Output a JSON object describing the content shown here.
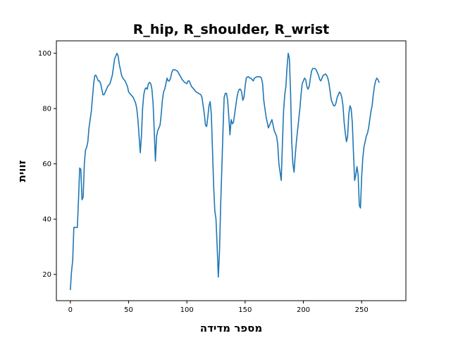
{
  "chart_data": {
    "type": "line",
    "title": "R_hip, R_shoulder, R_wrist",
    "xlabel": "מספר מדידה",
    "ylabel": "זווית",
    "xlim": [
      -12,
      288
    ],
    "ylim": [
      10.5,
      104.5
    ],
    "xticks": [
      0,
      50,
      100,
      150,
      200,
      250
    ],
    "yticks": [
      20,
      40,
      60,
      80,
      100
    ],
    "grid": false,
    "line_color": "#1f77b4",
    "series": [
      {
        "points": [
          [
            0,
            14.5
          ],
          [
            1,
            21
          ],
          [
            2,
            25
          ],
          [
            3,
            37
          ],
          [
            4,
            37
          ],
          [
            5,
            37
          ],
          [
            6,
            37
          ],
          [
            7,
            47
          ],
          [
            8,
            58.5
          ],
          [
            9,
            58
          ],
          [
            10,
            47
          ],
          [
            11,
            48
          ],
          [
            12,
            60
          ],
          [
            13,
            65
          ],
          [
            14,
            66
          ],
          [
            15,
            68
          ],
          [
            16,
            73
          ],
          [
            17,
            76
          ],
          [
            18,
            79
          ],
          [
            19,
            84
          ],
          [
            20,
            89
          ],
          [
            21,
            92
          ],
          [
            22,
            92
          ],
          [
            23,
            91
          ],
          [
            24,
            90
          ],
          [
            25,
            90
          ],
          [
            26,
            89
          ],
          [
            27,
            87
          ],
          [
            28,
            85
          ],
          [
            29,
            85
          ],
          [
            30,
            86
          ],
          [
            32,
            88
          ],
          [
            34,
            89
          ],
          [
            36,
            92
          ],
          [
            37,
            95
          ],
          [
            38,
            98
          ],
          [
            40,
            100
          ],
          [
            41,
            99
          ],
          [
            42,
            96
          ],
          [
            43,
            94
          ],
          [
            44,
            92
          ],
          [
            45,
            91
          ],
          [
            46,
            90.5
          ],
          [
            47,
            90
          ],
          [
            48,
            89
          ],
          [
            49,
            88
          ],
          [
            50,
            86
          ],
          [
            52,
            85
          ],
          [
            54,
            84
          ],
          [
            55,
            83
          ],
          [
            56,
            82
          ],
          [
            57,
            80
          ],
          [
            58,
            76
          ],
          [
            59,
            70
          ],
          [
            60,
            64
          ],
          [
            61,
            70
          ],
          [
            62,
            80
          ],
          [
            63,
            85
          ],
          [
            64,
            87
          ],
          [
            65,
            87.5
          ],
          [
            66,
            87
          ],
          [
            67,
            89
          ],
          [
            68,
            89.5
          ],
          [
            69,
            89
          ],
          [
            70,
            87
          ],
          [
            71,
            82
          ],
          [
            72,
            72
          ],
          [
            73,
            61
          ],
          [
            74,
            70
          ],
          [
            75,
            72
          ],
          [
            76,
            73
          ],
          [
            77,
            74
          ],
          [
            78,
            78
          ],
          [
            79,
            83
          ],
          [
            80,
            86
          ],
          [
            81,
            87
          ],
          [
            82,
            89
          ],
          [
            83,
            91
          ],
          [
            84,
            90
          ],
          [
            85,
            90
          ],
          [
            86,
            91
          ],
          [
            87,
            93
          ],
          [
            88,
            94
          ],
          [
            90,
            94
          ],
          [
            92,
            93.5
          ],
          [
            94,
            92
          ],
          [
            96,
            90.5
          ],
          [
            98,
            89.5
          ],
          [
            100,
            89
          ],
          [
            101,
            90
          ],
          [
            102,
            90
          ],
          [
            103,
            89
          ],
          [
            104,
            88
          ],
          [
            106,
            87
          ],
          [
            108,
            86
          ],
          [
            112,
            85
          ],
          [
            113,
            84
          ],
          [
            114,
            81
          ],
          [
            115,
            78
          ],
          [
            116,
            74
          ],
          [
            117,
            73.5
          ],
          [
            118,
            77
          ],
          [
            119,
            81
          ],
          [
            120,
            82.5
          ],
          [
            121,
            78
          ],
          [
            122,
            65
          ],
          [
            123,
            52
          ],
          [
            124,
            43
          ],
          [
            125,
            40
          ],
          [
            126,
            30
          ],
          [
            127,
            19
          ],
          [
            128,
            28
          ],
          [
            129,
            45
          ],
          [
            130,
            58
          ],
          [
            131,
            72
          ],
          [
            132,
            84
          ],
          [
            133,
            85.5
          ],
          [
            134,
            85.5
          ],
          [
            135,
            83
          ],
          [
            136,
            77
          ],
          [
            137,
            70.5
          ],
          [
            138,
            76
          ],
          [
            139,
            74.5
          ],
          [
            140,
            75
          ],
          [
            141,
            78
          ],
          [
            142,
            81
          ],
          [
            143,
            84
          ],
          [
            144,
            86
          ],
          [
            145,
            87
          ],
          [
            146,
            87
          ],
          [
            147,
            86
          ],
          [
            148,
            83
          ],
          [
            149,
            84
          ],
          [
            150,
            88
          ],
          [
            151,
            91
          ],
          [
            152,
            91.5
          ],
          [
            153,
            91.5
          ],
          [
            154,
            91
          ],
          [
            155,
            91
          ],
          [
            156,
            90.5
          ],
          [
            157,
            90
          ],
          [
            158,
            91
          ],
          [
            160,
            91.5
          ],
          [
            163,
            91.5
          ],
          [
            164,
            91
          ],
          [
            165,
            89
          ],
          [
            166,
            83
          ],
          [
            167,
            80
          ],
          [
            168,
            77
          ],
          [
            169,
            75
          ],
          [
            170,
            73
          ],
          [
            171,
            74
          ],
          [
            172,
            75
          ],
          [
            173,
            76
          ],
          [
            174,
            74
          ],
          [
            175,
            72
          ],
          [
            176,
            71
          ],
          [
            177,
            70
          ],
          [
            178,
            67
          ],
          [
            179,
            60
          ],
          [
            180,
            57
          ],
          [
            181,
            54
          ],
          [
            182,
            67
          ],
          [
            183,
            79
          ],
          [
            184,
            85
          ],
          [
            185,
            88
          ],
          [
            186,
            95
          ],
          [
            187,
            100
          ],
          [
            188,
            98
          ],
          [
            189,
            86
          ],
          [
            190,
            68
          ],
          [
            191,
            60
          ],
          [
            192,
            57
          ],
          [
            193,
            63
          ],
          [
            194,
            68
          ],
          [
            195,
            72
          ],
          [
            196,
            76
          ],
          [
            197,
            80
          ],
          [
            198,
            85
          ],
          [
            199,
            89
          ],
          [
            200,
            90
          ],
          [
            201,
            91
          ],
          [
            202,
            90.5
          ],
          [
            203,
            88
          ],
          [
            204,
            87
          ],
          [
            205,
            88
          ],
          [
            206,
            91
          ],
          [
            207,
            93.5
          ],
          [
            208,
            94.5
          ],
          [
            210,
            94.5
          ],
          [
            211,
            94
          ],
          [
            212,
            93
          ],
          [
            213,
            92
          ],
          [
            214,
            90.5
          ],
          [
            215,
            90
          ],
          [
            216,
            91
          ],
          [
            217,
            92
          ],
          [
            219,
            92.5
          ],
          [
            220,
            92
          ],
          [
            221,
            91
          ],
          [
            222,
            89
          ],
          [
            223,
            86
          ],
          [
            224,
            83
          ],
          [
            225,
            82
          ],
          [
            226,
            81
          ],
          [
            227,
            81
          ],
          [
            228,
            82
          ],
          [
            229,
            84
          ],
          [
            230,
            85
          ],
          [
            231,
            86
          ],
          [
            232,
            85.5
          ],
          [
            233,
            84
          ],
          [
            234,
            81
          ],
          [
            235,
            75
          ],
          [
            236,
            71
          ],
          [
            237,
            68
          ],
          [
            238,
            70
          ],
          [
            239,
            78
          ],
          [
            240,
            81
          ],
          [
            241,
            80
          ],
          [
            242,
            75
          ],
          [
            243,
            64
          ],
          [
            244,
            54
          ],
          [
            245,
            56
          ],
          [
            246,
            59
          ],
          [
            247,
            56
          ],
          [
            248,
            45
          ],
          [
            249,
            44
          ],
          [
            250,
            55
          ],
          [
            251,
            62
          ],
          [
            252,
            66
          ],
          [
            253,
            68
          ],
          [
            254,
            70
          ],
          [
            255,
            71
          ],
          [
            256,
            73
          ],
          [
            257,
            76
          ],
          [
            258,
            79
          ],
          [
            259,
            81
          ],
          [
            260,
            85
          ],
          [
            261,
            88
          ],
          [
            262,
            90
          ],
          [
            263,
            91
          ],
          [
            264,
            90.5
          ],
          [
            265,
            89.5
          ]
        ]
      }
    ]
  }
}
